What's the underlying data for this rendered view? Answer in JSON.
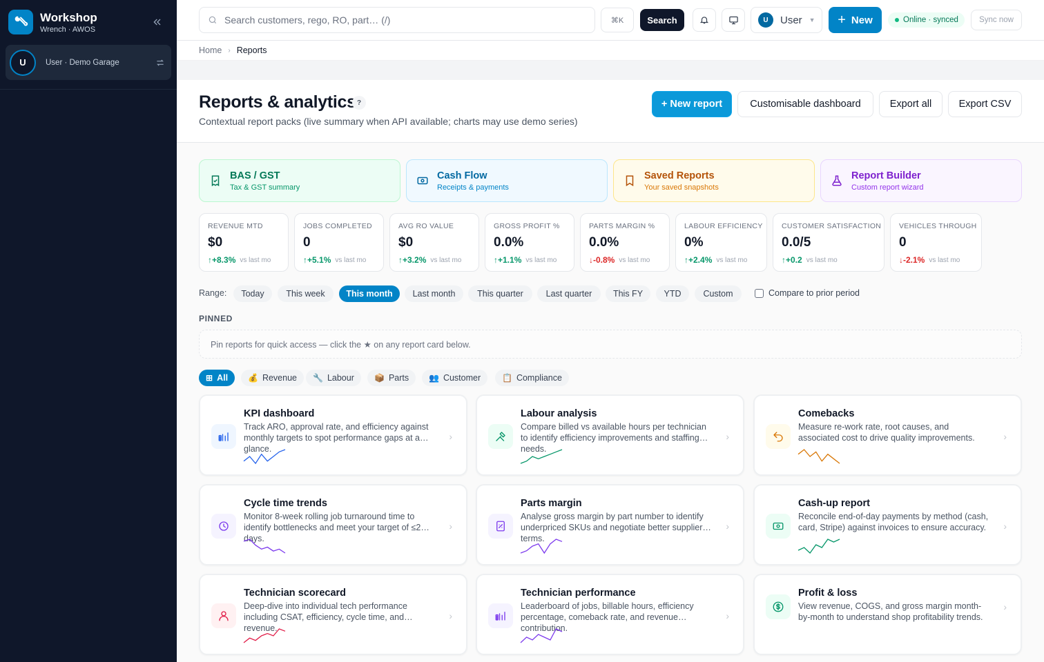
{
  "app": {
    "title": "Workshop",
    "subtitle": "Wrench · AWOS"
  },
  "sidebar": {
    "user_label": "User · Demo Garage",
    "avatar_initial": "U"
  },
  "topbar": {
    "search_placeholder": "Search customers, rego, RO, part… (/)",
    "shortcut": "⌘K",
    "search_button": "Search",
    "user_initial": "U",
    "user_label": "User",
    "new_button": "New",
    "status": "Online · synced",
    "sync_button": "Sync now"
  },
  "breadcrumb": {
    "home": "Home",
    "current": "Reports"
  },
  "header": {
    "title": "Reports & analytics",
    "help": "?",
    "subtitle": "Contextual report packs (live summary when API available; charts may use demo series)",
    "buttons": {
      "new_report": "+ New report",
      "dashboard": "Customisable dashboard",
      "export_all": "Export all",
      "export_csv": "Export CSV"
    }
  },
  "quick_cards": [
    {
      "title": "BAS / GST",
      "sub": "Tax & GST summary",
      "icon": "receipt-icon",
      "color": "#047857"
    },
    {
      "title": "Cash Flow",
      "sub": "Receipts & payments",
      "icon": "banknote-icon",
      "color": "#0369a1"
    },
    {
      "title": "Saved Reports",
      "sub": "Your saved snapshots",
      "icon": "bookmark-icon",
      "color": "#b45309"
    },
    {
      "title": "Report Builder",
      "sub": "Custom report wizard",
      "icon": "flask-icon",
      "color": "#7e22ce"
    }
  ],
  "kpis": [
    {
      "label": "REVENUE MTD",
      "value": "$0",
      "delta": "+8.3%",
      "dir": "up",
      "vs": "vs last mo"
    },
    {
      "label": "JOBS COMPLETED",
      "value": "0",
      "delta": "+5.1%",
      "dir": "up",
      "vs": "vs last mo"
    },
    {
      "label": "AVG RO VALUE",
      "value": "$0",
      "delta": "+3.2%",
      "dir": "up",
      "vs": "vs last mo"
    },
    {
      "label": "GROSS PROFIT %",
      "value": "0.0%",
      "delta": "+1.1%",
      "dir": "up",
      "vs": "vs last mo"
    },
    {
      "label": "PARTS MARGIN %",
      "value": "0.0%",
      "delta": "-0.8%",
      "dir": "down",
      "vs": "vs last mo"
    },
    {
      "label": "LABOUR EFFICIENCY",
      "value": "0%",
      "delta": "+2.4%",
      "dir": "up",
      "vs": "vs last mo"
    },
    {
      "label": "CUSTOMER SATISFACTION",
      "value": "0.0/5",
      "delta": "+0.2",
      "dir": "up",
      "vs": "vs last mo"
    },
    {
      "label": "VEHICLES THROUGH",
      "value": "0",
      "delta": "-2.1%",
      "dir": "down",
      "vs": "vs last mo"
    }
  ],
  "range": {
    "label": "Range:",
    "options": [
      "Today",
      "This week",
      "This month",
      "Last month",
      "This quarter",
      "Last quarter",
      "This FY",
      "YTD",
      "Custom"
    ],
    "selected": "This month",
    "compare_label": "Compare to prior period",
    "compare_checked": false
  },
  "pinned": {
    "title": "PINNED",
    "empty": "Pin reports for quick access — click the ★ on any report card below."
  },
  "filters": [
    {
      "label": "All",
      "icon": "grid-icon",
      "glyph": "⊞",
      "active": true
    },
    {
      "label": "Revenue",
      "icon": "money-bag-icon",
      "glyph": "💰",
      "active": false
    },
    {
      "label": "Labour",
      "icon": "wrench-icon",
      "glyph": "🔧",
      "active": false
    },
    {
      "label": "Parts",
      "icon": "package-icon",
      "glyph": "📦",
      "active": false
    },
    {
      "label": "Customer",
      "icon": "people-icon",
      "glyph": "👥",
      "active": false
    },
    {
      "label": "Compliance",
      "icon": "clipboard-icon",
      "glyph": "📋",
      "active": false
    }
  ],
  "reports": [
    {
      "title": "KPI dashboard",
      "desc": "Track ARO, approval rate, and efficiency against monthly targets to spot performance gaps at a glance.",
      "icon": "bar-chart-icon",
      "color": "#2563eb",
      "bg": "#eff6ff",
      "spark": [
        3,
        5,
        2,
        6,
        3,
        5,
        7,
        8
      ]
    },
    {
      "title": "Labour analysis",
      "desc": "Compare billed vs available hours per technician to identify efficiency improvements and staffing needs.",
      "icon": "hammer-wrench-icon",
      "color": "#059669",
      "bg": "#ecfdf5",
      "spark": [
        2,
        3,
        5,
        4,
        5,
        6,
        7,
        8
      ]
    },
    {
      "title": "Comebacks",
      "desc": "Measure re-work rate, root causes, and associated cost to drive quality improvements.",
      "icon": "undo-icon",
      "color": "#d97706",
      "bg": "#fffbeb",
      "spark": [
        6,
        8,
        5,
        7,
        3,
        6,
        4,
        2
      ]
    },
    {
      "title": "Cycle time trends",
      "desc": "Monitor 8-week rolling job turnaround time to identify bottlenecks and meet your target of ≤2 days.",
      "icon": "clock-icon",
      "color": "#7c3aed",
      "bg": "#f5f3ff",
      "spark": [
        7,
        8,
        5,
        3,
        4,
        2,
        3,
        1
      ]
    },
    {
      "title": "Parts margin",
      "desc": "Analyse gross margin by part number to identify underpriced SKUs and negotiate better supplier terms.",
      "icon": "percent-icon",
      "color": "#7c3aed",
      "bg": "#f5f3ff",
      "spark": [
        2,
        3,
        5,
        6,
        2,
        6,
        8,
        7
      ]
    },
    {
      "title": "Cash-up report",
      "desc": "Reconcile end-of-day payments by method (cash, card, Stripe) against invoices to ensure accuracy.",
      "icon": "banknote-icon",
      "color": "#059669",
      "bg": "#ecfdf5",
      "spark": [
        3,
        4,
        2,
        5,
        4,
        7,
        6,
        7
      ]
    },
    {
      "title": "Technician scorecard",
      "desc": "Deep-dive into individual tech performance including CSAT, efficiency, cycle time, and revenue.",
      "icon": "user-icon",
      "color": "#e11d48",
      "bg": "#fff1f2",
      "spark": [
        2,
        4,
        3,
        5,
        6,
        5,
        8,
        7
      ]
    },
    {
      "title": "Technician performance",
      "desc": "Leaderboard of jobs, billable hours, efficiency percentage, comeback rate, and revenue contribution.",
      "icon": "bar-chart-icon",
      "color": "#7c3aed",
      "bg": "#f5f3ff",
      "spark": [
        2,
        4,
        3,
        5,
        4,
        3,
        7,
        6
      ]
    },
    {
      "title": "Profit & loss",
      "desc": "View revenue, COGS, and gross margin month-by-month to understand shop profitability trends.",
      "icon": "dollar-circle-icon",
      "color": "#059669",
      "bg": "#ecfdf5",
      "spark": []
    }
  ]
}
